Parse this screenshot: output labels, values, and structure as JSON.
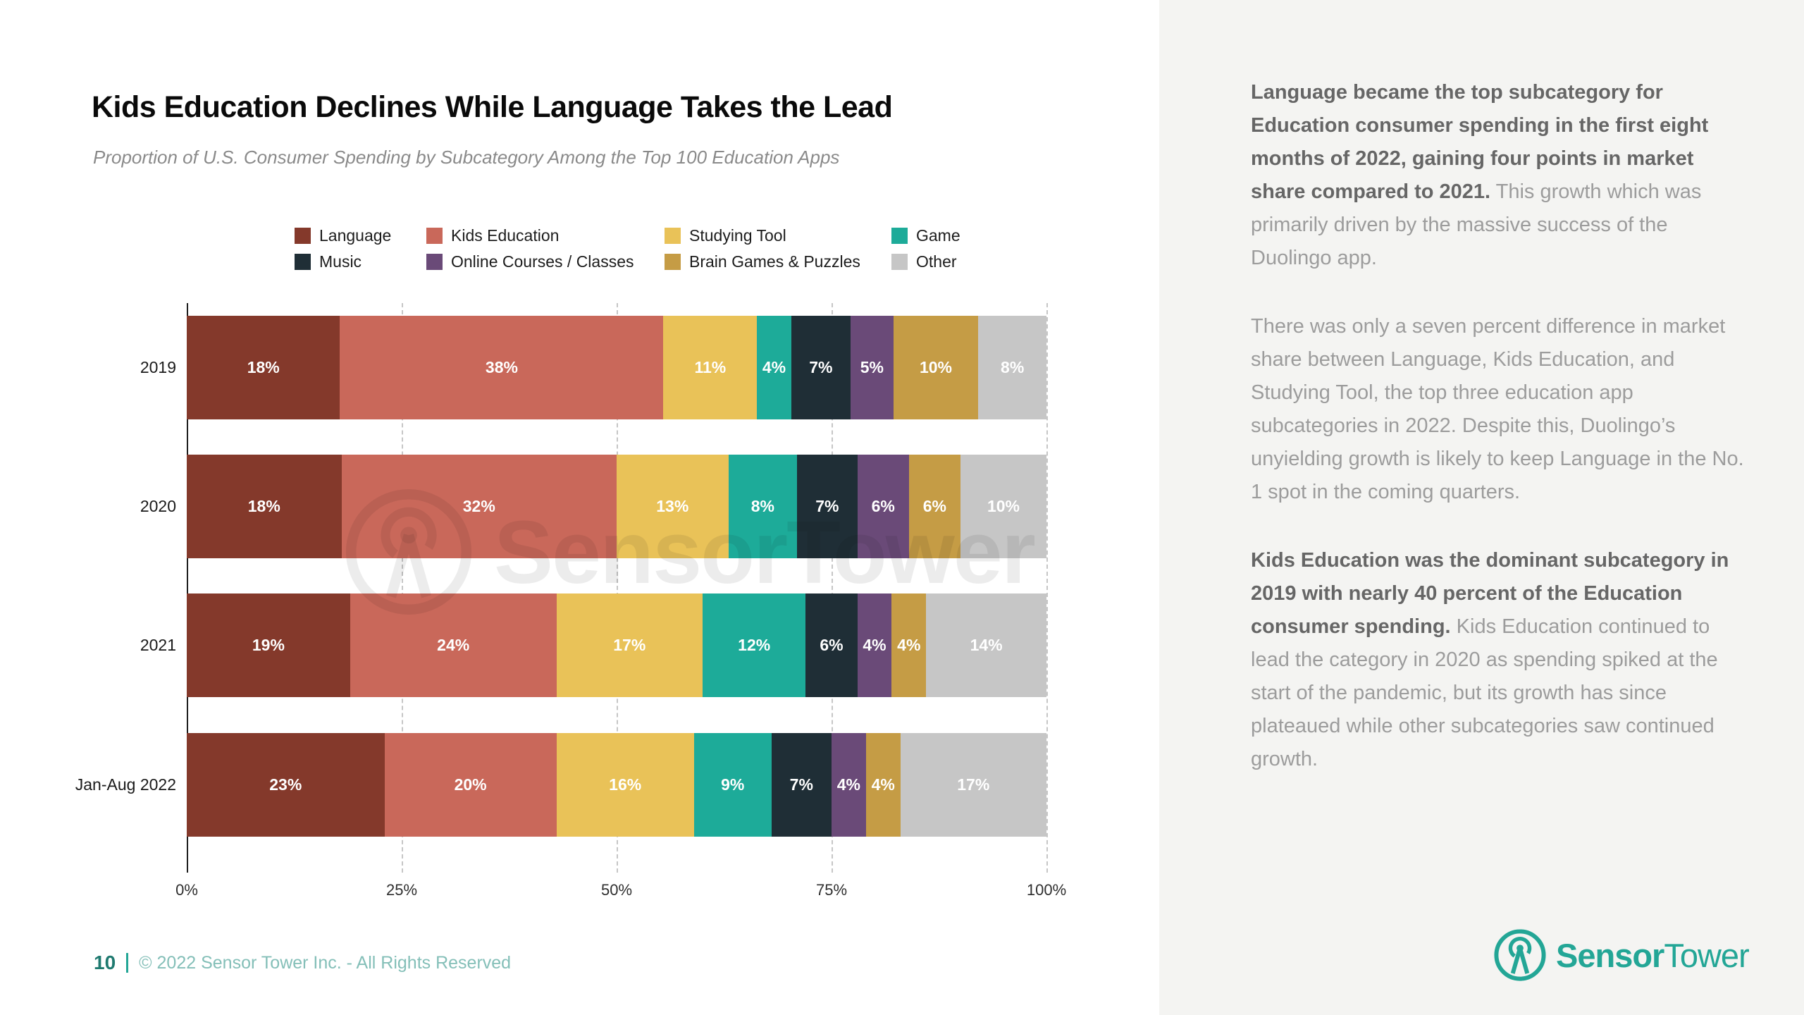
{
  "page": {
    "title": "Kids Education Declines While Language Takes the Lead",
    "subtitle": "Proportion of U.S. Consumer Spending by Subcategory Among the Top 100 Education Apps"
  },
  "chart_data": {
    "type": "bar",
    "orientation": "horizontal",
    "stacked": true,
    "unit": "%",
    "title": "Kids Education Declines While Language Takes the Lead",
    "subtitle": "Proportion of U.S. Consumer Spending by Subcategory Among the Top 100 Education Apps",
    "categories": [
      "2019",
      "2020",
      "2021",
      "Jan-Aug 2022"
    ],
    "series": [
      {
        "name": "Language",
        "color": "#84392B",
        "values": [
          18,
          18,
          19,
          23
        ]
      },
      {
        "name": "Kids Education",
        "color": "#C9685A",
        "values": [
          38,
          32,
          24,
          20
        ]
      },
      {
        "name": "Studying Tool",
        "color": "#E9C258",
        "values": [
          11,
          13,
          17,
          16
        ]
      },
      {
        "name": "Game",
        "color": "#1DAB99",
        "values": [
          4,
          8,
          12,
          9
        ]
      },
      {
        "name": "Music",
        "color": "#1F2E36",
        "values": [
          7,
          7,
          6,
          7
        ]
      },
      {
        "name": "Online Courses / Classes",
        "color": "#6A4A78",
        "values": [
          5,
          6,
          4,
          4
        ]
      },
      {
        "name": "Brain Games & Puzzles",
        "color": "#C59C45",
        "values": [
          10,
          6,
          4,
          4
        ]
      },
      {
        "name": "Other",
        "color": "#C6C6C6",
        "values": [
          8,
          10,
          14,
          17
        ]
      }
    ],
    "x_axis": {
      "ticks": [
        "0%",
        "25%",
        "50%",
        "75%",
        "100%"
      ],
      "range": [
        0,
        100
      ],
      "gridlines": "dashed"
    },
    "legend_position": "top",
    "value_labels": "inside, white, suffixed with %"
  },
  "panel": {
    "paragraphs": [
      [
        {
          "t": "Language became the top subcategory for Education consumer spending in the first eight months of 2022, gaining four points in market share compared to 2021.",
          "b": true
        },
        {
          "t": " This growth which was primarily driven by the massive success of the Duolingo app.",
          "b": false
        }
      ],
      [
        {
          "t": "There was only a seven percent difference in market share between Language, Kids Education, and Studying Tool, the top three education app subcategories in 2022. Despite this, Duolingo’s unyielding growth is likely to keep Language in the No. 1 spot in the coming quarters.",
          "b": false
        }
      ],
      [
        {
          "t": "Kids Education was the dominant subcategory in 2019 with nearly 40 percent of the Education consumer spending.",
          "b": true
        },
        {
          "t": " Kids Education continued to lead the category in 2020 as spending spiked at the start of the pandemic, but its growth has since plateaued while other subcategories saw continued growth.",
          "b": false
        }
      ]
    ]
  },
  "footer": {
    "page_number": "10",
    "copyright": "© 2022 Sensor Tower Inc. - All Rights Reserved"
  },
  "branding": {
    "logo_bold": "Sensor",
    "logo_regular": "Tower",
    "watermark_text": "SensorTower",
    "teal": "#23A696"
  }
}
